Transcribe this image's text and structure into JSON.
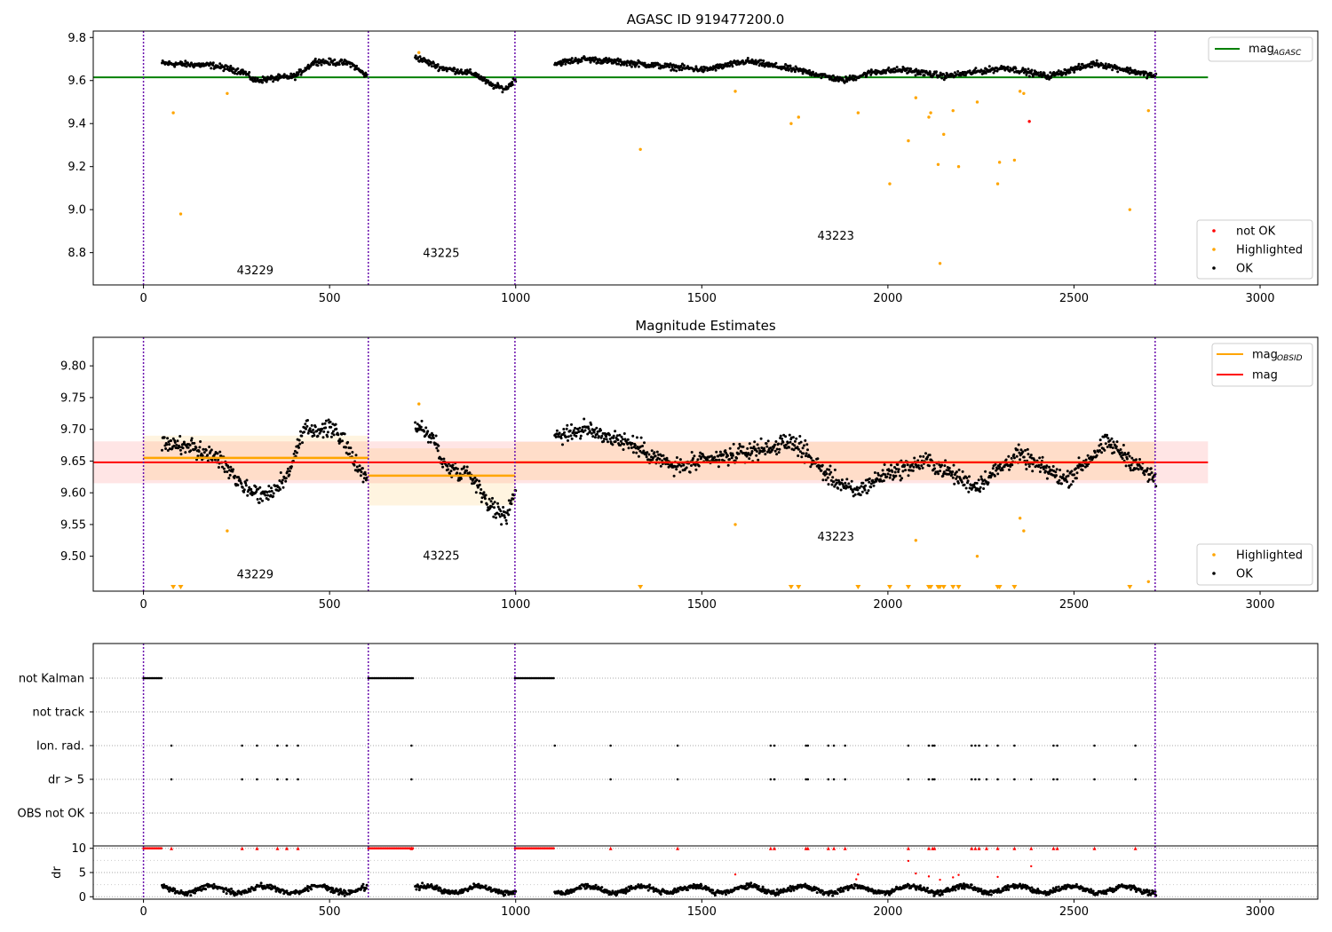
{
  "chart_data": [
    {
      "type": "scatter",
      "title": "AGASC ID 919477200.0",
      "xlim": [
        -135,
        3155
      ],
      "ylim": [
        8.65,
        9.83
      ],
      "xticks": [
        0,
        500,
        1000,
        1500,
        2000,
        2500,
        3000
      ],
      "xtick_labels": [
        "0",
        "500",
        "1000",
        "1500",
        "2000",
        "2500",
        "3000"
      ],
      "yticks": [
        8.8,
        9.0,
        9.2,
        9.4,
        9.6,
        9.8
      ],
      "ytick_labels": [
        "8.8",
        "9.0",
        "9.2",
        "9.4",
        "9.6",
        "9.8"
      ],
      "obsid_boundaries": [
        0,
        604,
        998,
        2718
      ],
      "obsid_labels": [
        {
          "text": "43229",
          "x": 300,
          "y": 8.7
        },
        {
          "text": "43225",
          "x": 800,
          "y": 8.78
        },
        {
          "text": "43223",
          "x": 1860,
          "y": 8.86
        }
      ],
      "mag_agasc": 9.615,
      "mag_agasc_x": [
        -135,
        2860
      ],
      "legend_top": [
        {
          "label": "mag",
          "sub": "AGASC",
          "color": "#008000"
        }
      ],
      "legend_bottom": [
        {
          "label": "not OK",
          "color": "#ff0000"
        },
        {
          "label": "Highlighted",
          "color": "#ffa500"
        },
        {
          "label": "OK",
          "color": "#000000"
        }
      ],
      "segments": [
        {
          "x0": 50,
          "x1": 600,
          "y": [
            [
              0,
              9.68
            ],
            [
              0.25,
              9.67
            ],
            [
              0.4,
              9.64
            ],
            [
              0.45,
              9.6
            ],
            [
              0.55,
              9.61
            ],
            [
              0.65,
              9.62
            ],
            [
              0.75,
              9.69
            ],
            [
              0.92,
              9.68
            ],
            [
              1,
              9.62
            ]
          ]
        },
        {
          "x0": 730,
          "x1": 1000,
          "y": [
            [
              0,
              9.71
            ],
            [
              0.25,
              9.66
            ],
            [
              0.6,
              9.63
            ],
            [
              0.75,
              9.58
            ],
            [
              0.9,
              9.56
            ],
            [
              1,
              9.61
            ]
          ]
        },
        {
          "x0": 1105,
          "x1": 2720,
          "y": [
            [
              0,
              9.68
            ],
            [
              0.05,
              9.7
            ],
            [
              0.25,
              9.65
            ],
            [
              0.32,
              9.69
            ],
            [
              0.42,
              9.64
            ],
            [
              0.48,
              9.6
            ],
            [
              0.53,
              9.64
            ],
            [
              0.58,
              9.65
            ],
            [
              0.65,
              9.62
            ],
            [
              0.75,
              9.66
            ],
            [
              0.82,
              9.62
            ],
            [
              0.9,
              9.68
            ],
            [
              1,
              9.62
            ]
          ]
        }
      ],
      "highlighted": [
        [
          80,
          9.45
        ],
        [
          100,
          8.98
        ],
        [
          225,
          9.54
        ],
        [
          740,
          9.73
        ],
        [
          1335,
          9.28
        ],
        [
          1590,
          9.55
        ],
        [
          1740,
          9.4
        ],
        [
          1760,
          9.43
        ],
        [
          1920,
          9.45
        ],
        [
          2005,
          9.12
        ],
        [
          2055,
          9.32
        ],
        [
          2075,
          9.52
        ],
        [
          2110,
          9.43
        ],
        [
          2115,
          9.45
        ],
        [
          2135,
          9.21
        ],
        [
          2140,
          8.75
        ],
        [
          2150,
          9.35
        ],
        [
          2175,
          9.46
        ],
        [
          2190,
          9.2
        ],
        [
          2240,
          9.5
        ],
        [
          2295,
          9.12
        ],
        [
          2300,
          9.22
        ],
        [
          2340,
          9.23
        ],
        [
          2355,
          9.55
        ],
        [
          2365,
          9.54
        ],
        [
          2650,
          9.0
        ],
        [
          2700,
          9.46
        ]
      ],
      "not_ok": [
        [
          2380,
          9.41
        ]
      ]
    },
    {
      "type": "scatter",
      "title": "Magnitude Estimates",
      "xlim": [
        -135,
        3155
      ],
      "ylim": [
        9.445,
        9.845
      ],
      "xticks": [
        0,
        500,
        1000,
        1500,
        2000,
        2500,
        3000
      ],
      "xtick_labels": [
        "0",
        "500",
        "1000",
        "1500",
        "2000",
        "2500",
        "3000"
      ],
      "yticks": [
        9.5,
        9.55,
        9.6,
        9.65,
        9.7,
        9.75,
        9.8
      ],
      "ytick_labels": [
        "9.50",
        "9.55",
        "9.60",
        "9.65",
        "9.70",
        "9.75",
        "9.80"
      ],
      "obsid_boundaries": [
        0,
        604,
        998,
        2718
      ],
      "obsid_labels": [
        {
          "text": "43229",
          "x": 300,
          "y": 9.465
        },
        {
          "text": "43225",
          "x": 800,
          "y": 9.495
        },
        {
          "text": "43223",
          "x": 1860,
          "y": 9.525
        }
      ],
      "mag": 9.648,
      "mag_band": [
        9.615,
        9.681
      ],
      "mag_x": [
        -135,
        2860
      ],
      "mag_obsid": [
        {
          "x0": 0,
          "x1": 604,
          "y": 9.655,
          "band": [
            9.62,
            9.69
          ]
        },
        {
          "x0": 604,
          "x1": 998,
          "y": 9.627,
          "band": [
            9.58,
            9.67
          ]
        },
        {
          "x0": 998,
          "x1": 2718,
          "y": 9.648,
          "band": [
            9.62,
            9.68
          ]
        }
      ],
      "legend_top": [
        {
          "label": "mag",
          "sub": "OBSID",
          "color": "#ffa500"
        },
        {
          "label": "mag",
          "sub": "",
          "color": "#ff0000"
        }
      ],
      "legend_bottom": [
        {
          "label": "Highlighted",
          "color": "#ffa500"
        },
        {
          "label": "OK",
          "color": "#000000"
        }
      ],
      "segments": [
        {
          "x0": 50,
          "x1": 600,
          "y": [
            [
              0,
              9.68
            ],
            [
              0.15,
              9.67
            ],
            [
              0.3,
              9.65
            ],
            [
              0.4,
              9.61
            ],
            [
              0.5,
              9.595
            ],
            [
              0.6,
              9.62
            ],
            [
              0.7,
              9.7
            ],
            [
              0.85,
              9.7
            ],
            [
              0.92,
              9.66
            ],
            [
              1,
              9.62
            ]
          ]
        },
        {
          "x0": 730,
          "x1": 1000,
          "y": [
            [
              0,
              9.71
            ],
            [
              0.2,
              9.68
            ],
            [
              0.3,
              9.64
            ],
            [
              0.55,
              9.63
            ],
            [
              0.75,
              9.58
            ],
            [
              0.9,
              9.56
            ],
            [
              1,
              9.61
            ]
          ]
        },
        {
          "x0": 1105,
          "x1": 2720,
          "y": [
            [
              0,
              9.69
            ],
            [
              0.05,
              9.7
            ],
            [
              0.12,
              9.68
            ],
            [
              0.2,
              9.64
            ],
            [
              0.3,
              9.66
            ],
            [
              0.4,
              9.68
            ],
            [
              0.45,
              9.63
            ],
            [
              0.5,
              9.6
            ],
            [
              0.55,
              9.63
            ],
            [
              0.62,
              9.65
            ],
            [
              0.7,
              9.61
            ],
            [
              0.77,
              9.66
            ],
            [
              0.85,
              9.62
            ],
            [
              0.92,
              9.68
            ],
            [
              1,
              9.62
            ]
          ]
        }
      ],
      "highlighted": [
        [
          225,
          9.54
        ],
        [
          740,
          9.74
        ],
        [
          1590,
          9.55
        ],
        [
          2075,
          9.525
        ],
        [
          2240,
          9.5
        ],
        [
          2355,
          9.56
        ],
        [
          2365,
          9.54
        ],
        [
          2700,
          9.46
        ]
      ],
      "highlighted_offscale_x": [
        80,
        100,
        1335,
        1740,
        1760,
        1920,
        2005,
        2055,
        2110,
        2115,
        2135,
        2140,
        2150,
        2175,
        2190,
        2295,
        2300,
        2340,
        2650
      ]
    },
    {
      "type": "scatter",
      "title": "",
      "xlim": [
        -135,
        3155
      ],
      "flag_rows": [
        "not Kalman",
        "not track",
        "Ion. rad.",
        "dr > 5",
        "OBS not OK"
      ],
      "flags": {
        "not_kalman_ranges": [
          [
            0,
            50
          ],
          [
            604,
            725
          ],
          [
            998,
            1105
          ]
        ],
        "ion_rad_x": [
          75,
          265,
          305,
          360,
          385,
          415,
          720,
          1105,
          1255,
          1435,
          1685,
          1695,
          1780,
          1785,
          1840,
          1855,
          1885,
          2055,
          2110,
          2120,
          2125,
          2225,
          2235,
          2245,
          2265,
          2295,
          2340,
          2445,
          2455,
          2555,
          2665
        ],
        "dr5_x": [
          75,
          265,
          305,
          360,
          385,
          415,
          720,
          1255,
          1435,
          1685,
          1695,
          1780,
          1785,
          1840,
          1855,
          1885,
          2055,
          2110,
          2120,
          2125,
          2225,
          2235,
          2245,
          2265,
          2295,
          2340,
          2385,
          2445,
          2455,
          2555,
          2665
        ]
      },
      "dr_yticks": [
        0,
        5,
        10
      ],
      "dr_ytick_labels": [
        "0",
        "5",
        "10"
      ],
      "dr_ylim": [
        -0.5,
        10.5
      ],
      "dr_ylabel": "dr",
      "xticks": [
        0,
        500,
        1000,
        1500,
        2000,
        2500,
        3000
      ],
      "xtick_labels": [
        "0",
        "500",
        "1000",
        "1500",
        "2000",
        "2500",
        "3000"
      ],
      "dr_outliers": [
        [
          1590,
          4.6
        ],
        [
          1915,
          3.6
        ],
        [
          1920,
          4.6
        ],
        [
          2055,
          7.4
        ],
        [
          2075,
          4.8
        ],
        [
          2110,
          4.2
        ],
        [
          2140,
          3.5
        ],
        [
          2175,
          4.0
        ],
        [
          2190,
          4.5
        ],
        [
          2295,
          4.1
        ],
        [
          2385,
          6.3
        ]
      ]
    }
  ]
}
